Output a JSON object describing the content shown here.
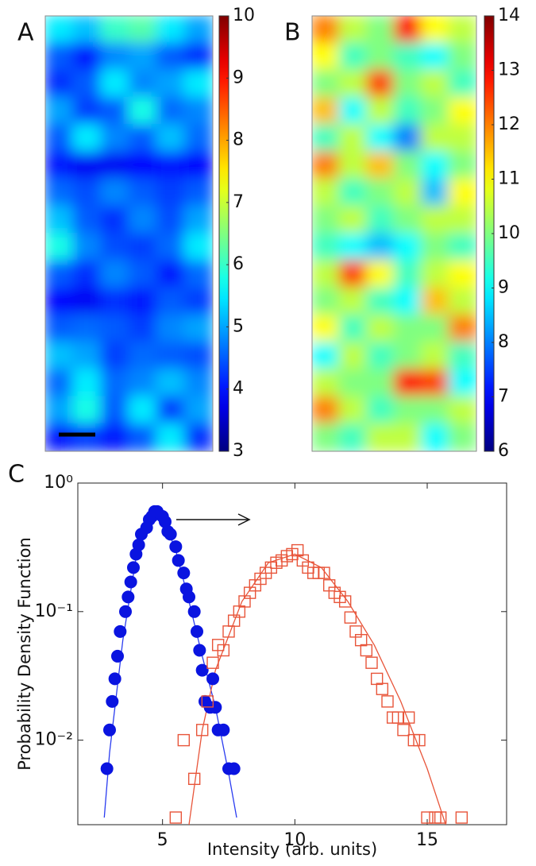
{
  "chart_data": [
    {
      "type": "heatmap",
      "label": "A",
      "colormap": "jet",
      "zlim": [
        3,
        10
      ],
      "zticks": [
        3,
        4,
        5,
        6,
        7,
        8,
        9,
        10
      ],
      "values": [
        [
          5.5,
          5.2,
          6.0,
          6.2,
          5.5,
          5.0
        ],
        [
          4.5,
          4.0,
          4.8,
          5.0,
          4.5,
          4.2
        ],
        [
          4.2,
          4.5,
          5.5,
          4.8,
          5.0,
          5.5
        ],
        [
          5.0,
          4.3,
          4.5,
          5.8,
          4.6,
          4.8
        ],
        [
          4.5,
          5.5,
          4.8,
          4.5,
          5.2,
          4.6
        ],
        [
          4.0,
          3.8,
          3.8,
          3.9,
          4.0,
          3.9
        ],
        [
          4.6,
          4.4,
          4.8,
          4.5,
          4.3,
          4.5
        ],
        [
          5.2,
          4.5,
          4.2,
          4.8,
          4.4,
          5.0
        ],
        [
          5.8,
          4.8,
          4.4,
          4.3,
          4.6,
          5.5
        ],
        [
          4.5,
          4.2,
          4.8,
          4.5,
          4.0,
          4.6
        ],
        [
          3.9,
          3.8,
          4.2,
          4.0,
          4.5,
          4.3
        ],
        [
          4.5,
          4.6,
          4.5,
          4.3,
          4.8,
          5.0
        ],
        [
          5.2,
          5.0,
          4.3,
          4.6,
          4.5,
          4.4
        ],
        [
          4.6,
          5.5,
          4.6,
          4.8,
          5.2,
          4.8
        ],
        [
          5.0,
          5.8,
          4.5,
          5.5,
          4.3,
          5.0
        ],
        [
          4.0,
          4.3,
          4.0,
          4.5,
          5.5,
          4.2
        ]
      ]
    },
    {
      "type": "heatmap",
      "label": "B",
      "colormap": "jet",
      "zlim": [
        6,
        14
      ],
      "zticks": [
        6,
        7,
        8,
        9,
        10,
        11,
        12,
        13,
        14
      ],
      "values": [
        [
          12.0,
          10.5,
          10.0,
          13.0,
          11.0,
          10.5
        ],
        [
          11.0,
          9.5,
          10.0,
          9.5,
          9.0,
          10.0
        ],
        [
          10.0,
          10.5,
          12.5,
          10.0,
          10.5,
          9.5
        ],
        [
          11.5,
          9.0,
          10.5,
          9.5,
          10.0,
          11.0
        ],
        [
          9.5,
          10.5,
          9.0,
          8.0,
          10.5,
          10.5
        ],
        [
          12.0,
          10.5,
          11.5,
          10.0,
          9.0,
          10.0
        ],
        [
          10.5,
          9.5,
          10.0,
          10.5,
          8.5,
          11.0
        ],
        [
          10.0,
          10.5,
          9.5,
          10.0,
          10.5,
          10.5
        ],
        [
          9.5,
          9.0,
          8.5,
          9.0,
          10.0,
          9.5
        ],
        [
          10.5,
          12.5,
          11.0,
          9.5,
          10.5,
          11.0
        ],
        [
          10.0,
          10.5,
          9.5,
          9.0,
          11.5,
          10.5
        ],
        [
          11.0,
          9.5,
          10.5,
          10.0,
          10.0,
          12.0
        ],
        [
          9.0,
          10.5,
          9.5,
          10.0,
          10.5,
          9.5
        ],
        [
          10.5,
          10.0,
          10.0,
          13.0,
          12.5,
          9.0
        ],
        [
          12.0,
          10.5,
          9.5,
          10.0,
          10.0,
          10.5
        ],
        [
          10.0,
          9.5,
          10.5,
          10.5,
          9.0,
          10.0
        ]
      ]
    },
    {
      "type": "scatter",
      "label": "C",
      "xlabel": "Intensity (arb. units)",
      "ylabel": "Probability Density Function",
      "log_y": true,
      "xlim": [
        1.8,
        18
      ],
      "ylim": [
        0.0022,
        1
      ],
      "xticks": [
        5,
        10,
        15
      ],
      "yticks": [
        {
          "value": 1,
          "label": "10⁰"
        },
        {
          "value": 0.1,
          "label": "10⁻¹"
        },
        {
          "value": 0.01,
          "label": "10⁻²"
        }
      ],
      "series": [
        {
          "mode": "markers",
          "marker": "circle",
          "color": "#0a14e0",
          "x": [
            2.9,
            3.0,
            3.1,
            3.2,
            3.3,
            3.4,
            3.6,
            3.7,
            3.8,
            3.9,
            4.0,
            4.1,
            4.2,
            4.4,
            4.5,
            4.6,
            4.7,
            4.8,
            5.0,
            5.1,
            5.2,
            5.3,
            5.5,
            5.6,
            5.8,
            5.9,
            6.0,
            6.2,
            6.3,
            6.4,
            6.5,
            6.6,
            6.8,
            6.9,
            7.0,
            7.1,
            7.3,
            7.5,
            7.7
          ],
          "values": [
            0.006,
            0.012,
            0.02,
            0.03,
            0.045,
            0.07,
            0.1,
            0.13,
            0.17,
            0.22,
            0.28,
            0.33,
            0.4,
            0.45,
            0.52,
            0.55,
            0.6,
            0.6,
            0.55,
            0.5,
            0.42,
            0.4,
            0.32,
            0.25,
            0.2,
            0.15,
            0.13,
            0.1,
            0.07,
            0.05,
            0.035,
            0.02,
            0.018,
            0.03,
            0.018,
            0.012,
            0.012,
            0.006,
            0.006
          ]
        },
        {
          "mode": "markers",
          "marker": "square",
          "color": "#e8553a",
          "x": [
            5.5,
            5.8,
            6.2,
            6.5,
            6.7,
            6.9,
            7.1,
            7.3,
            7.5,
            7.7,
            7.9,
            8.1,
            8.3,
            8.5,
            8.7,
            8.9,
            9.1,
            9.3,
            9.5,
            9.7,
            9.9,
            10.1,
            10.3,
            10.5,
            10.7,
            10.9,
            11.1,
            11.3,
            11.5,
            11.7,
            11.9,
            12.1,
            12.3,
            12.5,
            12.7,
            12.9,
            13.1,
            13.3,
            13.5,
            13.7,
            13.9,
            14.1,
            14.3,
            14.5,
            14.7,
            15.0,
            15.3,
            15.5,
            16.3
          ],
          "values": [
            0.0025,
            0.01,
            0.005,
            0.012,
            0.02,
            0.04,
            0.055,
            0.05,
            0.07,
            0.085,
            0.1,
            0.12,
            0.14,
            0.16,
            0.18,
            0.2,
            0.22,
            0.24,
            0.25,
            0.27,
            0.28,
            0.3,
            0.25,
            0.22,
            0.2,
            0.2,
            0.2,
            0.16,
            0.14,
            0.13,
            0.12,
            0.09,
            0.07,
            0.06,
            0.05,
            0.04,
            0.03,
            0.025,
            0.02,
            0.015,
            0.015,
            0.012,
            0.015,
            0.01,
            0.01,
            0.0025,
            0.0025,
            0.0025,
            0.0025
          ]
        },
        {
          "mode": "line",
          "color": "#2a3cf0",
          "x": [
            2.8,
            3.0,
            3.5,
            4.0,
            4.5,
            4.75,
            5.0,
            5.5,
            6.0,
            6.5,
            7.0,
            7.5,
            7.8
          ],
          "values": [
            0.0025,
            0.008,
            0.06,
            0.26,
            0.52,
            0.6,
            0.55,
            0.3,
            0.12,
            0.045,
            0.018,
            0.0055,
            0.0025
          ]
        },
        {
          "mode": "line",
          "color": "#e8553a",
          "x": [
            6.0,
            6.5,
            7.0,
            8.0,
            9.0,
            10.0,
            11.0,
            12.0,
            13.0,
            14.0,
            15.0,
            15.7
          ],
          "values": [
            0.0022,
            0.012,
            0.035,
            0.12,
            0.24,
            0.28,
            0.22,
            0.12,
            0.055,
            0.02,
            0.006,
            0.0022
          ]
        }
      ]
    }
  ]
}
